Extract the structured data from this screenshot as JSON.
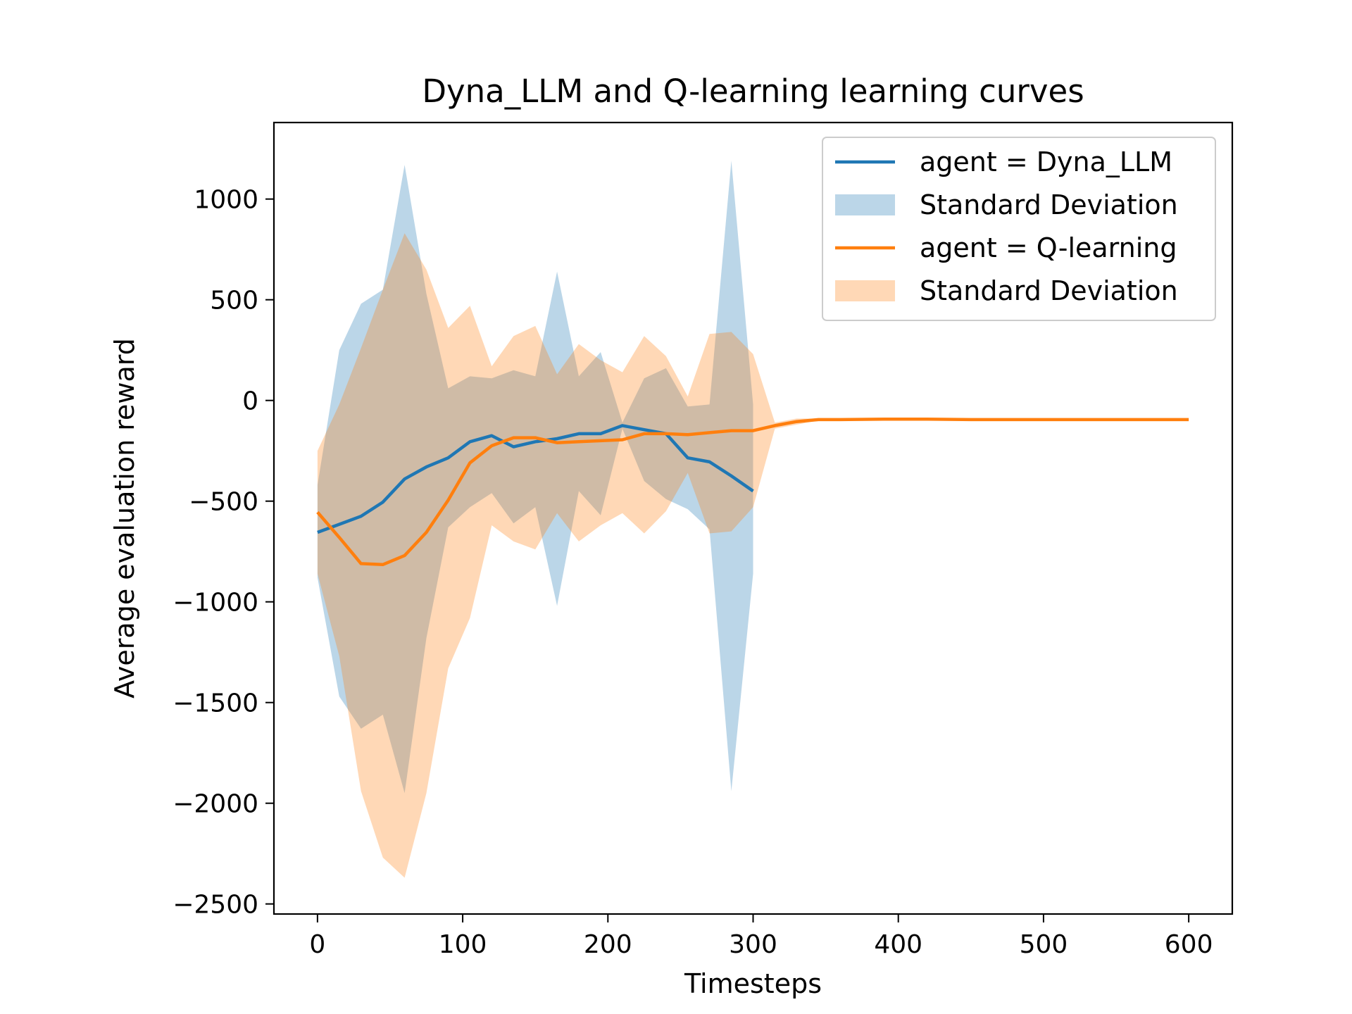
{
  "chart_data": {
    "type": "line",
    "title": "Dyna_LLM and Q-learning learning curves",
    "xlabel": "Timesteps",
    "ylabel": "Average evaluation reward",
    "xlim": [
      -30,
      630
    ],
    "ylim": [
      -2550,
      1380
    ],
    "xticks": [
      0,
      100,
      200,
      300,
      400,
      500,
      600
    ],
    "yticks": [
      -2500,
      -2000,
      -1500,
      -1000,
      -500,
      0,
      500,
      1000
    ],
    "xtick_labels": [
      "0",
      "100",
      "200",
      "300",
      "400",
      "500",
      "600"
    ],
    "ytick_labels": [
      "−2500",
      "−2000",
      "−1500",
      "−1000",
      "−500",
      "0",
      "500",
      "1000"
    ],
    "grid": false,
    "legend_position": "top-right",
    "series": [
      {
        "name": "agent = Dyna_LLM",
        "band_name": "Standard Deviation",
        "color": "#1f77b4",
        "band_color": "#1f77b4",
        "band_opacity": 0.3,
        "x": [
          0,
          15,
          30,
          45,
          60,
          75,
          90,
          105,
          120,
          135,
          150,
          165,
          180,
          195,
          210,
          225,
          240,
          255,
          270,
          285,
          300
        ],
        "y": [
          -655,
          -615,
          -575,
          -505,
          -390,
          -330,
          -285,
          -205,
          -175,
          -230,
          -205,
          -190,
          -165,
          -165,
          -125,
          -145,
          -165,
          -285,
          -305,
          -375,
          -450
        ],
        "upper": [
          -420,
          250,
          480,
          550,
          1170,
          530,
          60,
          120,
          110,
          150,
          120,
          640,
          120,
          240,
          -110,
          110,
          160,
          -30,
          -20,
          1190,
          -20
        ],
        "lower": [
          -880,
          -1470,
          -1630,
          -1560,
          -1950,
          -1180,
          -630,
          -530,
          -460,
          -610,
          -530,
          -1020,
          -450,
          -570,
          -140,
          -400,
          -490,
          -540,
          -640,
          -1940,
          -860
        ]
      },
      {
        "name": "agent = Q-learning",
        "band_name": "Standard Deviation",
        "color": "#ff7f0e",
        "band_color": "#ff7f0e",
        "band_opacity": 0.3,
        "x": [
          0,
          15,
          30,
          45,
          60,
          75,
          90,
          105,
          120,
          135,
          150,
          165,
          180,
          195,
          210,
          225,
          240,
          255,
          270,
          285,
          300,
          315,
          330,
          345,
          360,
          390,
          420,
          450,
          480,
          510,
          540,
          570,
          600
        ],
        "y": [
          -555,
          -680,
          -810,
          -815,
          -770,
          -655,
          -495,
          -310,
          -225,
          -185,
          -185,
          -210,
          -205,
          -200,
          -195,
          -165,
          -165,
          -170,
          -160,
          -150,
          -150,
          -125,
          -105,
          -95,
          -95,
          -93,
          -93,
          -95,
          -95,
          -95,
          -95,
          -95,
          -95
        ],
        "upper": [
          -250,
          -20,
          260,
          550,
          830,
          650,
          360,
          470,
          170,
          320,
          370,
          130,
          280,
          200,
          140,
          320,
          220,
          20,
          330,
          340,
          230,
          -110,
          -90,
          -90,
          -90,
          -90,
          -90,
          -90,
          -90,
          -90,
          -90,
          -90,
          -90
        ],
        "lower": [
          -860,
          -1270,
          -1940,
          -2270,
          -2370,
          -1950,
          -1330,
          -1080,
          -620,
          -700,
          -740,
          -560,
          -700,
          -620,
          -560,
          -660,
          -550,
          -360,
          -660,
          -650,
          -530,
          -140,
          -120,
          -100,
          -100,
          -96,
          -96,
          -100,
          -100,
          -100,
          -100,
          -100,
          -100
        ]
      }
    ]
  }
}
